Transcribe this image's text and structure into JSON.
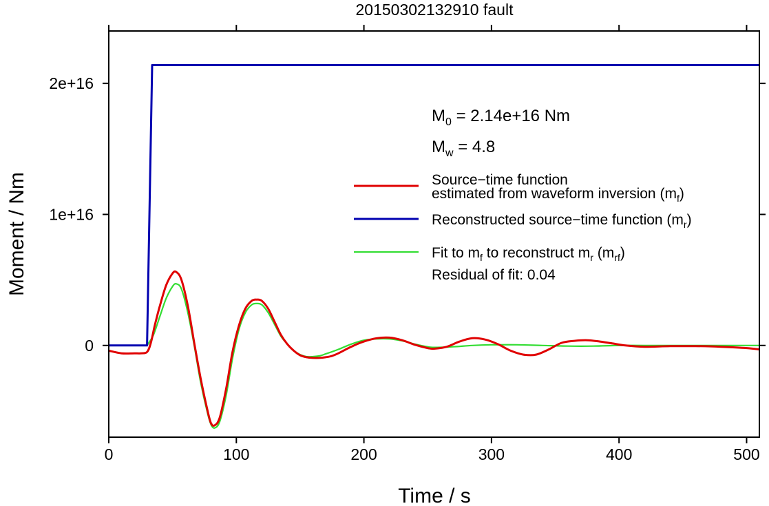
{
  "chart_data": {
    "type": "line",
    "title": "20150302132910 fault",
    "xlabel": "Time / s",
    "ylabel": "Moment / Nm",
    "xlim": [
      0,
      510
    ],
    "ylim": [
      -7000000000000000.0,
      2.4e+16
    ],
    "grid": false,
    "legend_position": "right",
    "x_ticks": [
      {
        "value": 0,
        "label": "0"
      },
      {
        "value": 100,
        "label": "100"
      },
      {
        "value": 200,
        "label": "200"
      },
      {
        "value": 300,
        "label": "300"
      },
      {
        "value": 400,
        "label": "400"
      },
      {
        "value": 500,
        "label": "500"
      }
    ],
    "y_ticks": [
      {
        "value": 0,
        "label": "0"
      },
      {
        "value": 1e+16,
        "label": "1e+16"
      },
      {
        "value": 2e+16,
        "label": "2e+16"
      }
    ],
    "annotations": {
      "m0": {
        "symbol": "M",
        "sub": "0",
        "text": " = 2.14e+16 Nm"
      },
      "mw": {
        "symbol": "M",
        "sub": "w",
        "text": " = 4.8"
      },
      "residual": "Residual of fit: 0.04"
    },
    "legend": {
      "stf_line1": "Source−time function",
      "stf_line2": "estimated from waveform inversion (m",
      "stf_line2_sub": "f",
      "stf_line2_end": ")",
      "rec_text": "Reconstructed source−time function (m",
      "rec_sub": "r",
      "rec_end": ")",
      "fit_a": "Fit to m",
      "fit_a_sub": "f",
      "fit_b": " to reconstruct m",
      "fit_b_sub": "r",
      "fit_c": " (m",
      "fit_c_sub": "rf",
      "fit_d": ")"
    },
    "series": [
      {
        "key": "mf",
        "color": "#e00000",
        "width": 3,
        "x": [
          0,
          10,
          20,
          25,
          30,
          33,
          36,
          40,
          45,
          50,
          53,
          57,
          62,
          67,
          72,
          77,
          80,
          83,
          87,
          92,
          97,
          102,
          107,
          112,
          116,
          120,
          125,
          130,
          135,
          140,
          145,
          150,
          155,
          160,
          165,
          170,
          175,
          180,
          190,
          200,
          210,
          220,
          230,
          240,
          250,
          255,
          265,
          275,
          285,
          295,
          305,
          315,
          325,
          335,
          345,
          355,
          365,
          375,
          385,
          395,
          405,
          420,
          440,
          460,
          480,
          500,
          510
        ],
        "y": [
          -400000000000000.0,
          -600000000000000.0,
          -600000000000000.0,
          -600000000000000.0,
          -500000000000000.0,
          200000000000000.0,
          1500000000000000.0,
          3000000000000000.0,
          4600000000000000.0,
          5500000000000000.0,
          5600000000000000.0,
          5000000000000000.0,
          3000000000000000.0,
          200000000000000.0,
          -2500000000000000.0,
          -4800000000000000.0,
          -5900000000000000.0,
          -6100000000000000.0,
          -5500000000000000.0,
          -3300000000000000.0,
          -500000000000000.0,
          1500000000000000.0,
          2800000000000000.0,
          3400000000000000.0,
          3500000000000000.0,
          3400000000000000.0,
          2800000000000000.0,
          1800000000000000.0,
          800000000000000.0,
          100000000000000.0,
          -400000000000000.0,
          -750000000000000.0,
          -900000000000000.0,
          -950000000000000.0,
          -950000000000000.0,
          -900000000000000.0,
          -800000000000000.0,
          -600000000000000.0,
          -100000000000000.0,
          300000000000000.0,
          550000000000000.0,
          600000000000000.0,
          400000000000000.0,
          50000000000000.0,
          -200000000000000.0,
          -250000000000000.0,
          -100000000000000.0,
          300000000000000.0,
          550000000000000.0,
          450000000000000.0,
          100000000000000.0,
          -400000000000000.0,
          -700000000000000.0,
          -700000000000000.0,
          -300000000000000.0,
          200000000000000.0,
          350000000000000.0,
          400000000000000.0,
          300000000000000.0,
          150000000000000.0,
          0.0,
          -100000000000000.0,
          -50000000000000.0,
          -50000000000000.0,
          -100000000000000.0,
          -200000000000000.0,
          -300000000000000.0
        ]
      },
      {
        "key": "mr",
        "color": "#0000b0",
        "width": 3,
        "x": [
          0,
          30,
          34,
          510
        ],
        "y": [
          0,
          0,
          2.14e+16,
          2.14e+16
        ]
      },
      {
        "key": "mrf",
        "color": "#33dd33",
        "width": 2.2,
        "x": [
          30,
          35,
          40,
          45,
          50,
          53,
          57,
          62,
          67,
          72,
          77,
          80,
          83,
          87,
          92,
          97,
          102,
          107,
          112,
          116,
          120,
          125,
          130,
          135,
          140,
          145,
          150,
          155,
          160,
          165,
          170,
          180,
          190,
          200,
          210,
          220,
          230,
          240,
          250,
          255,
          270,
          285,
          300,
          320,
          340,
          360,
          380,
          400,
          420,
          460,
          500,
          510
        ],
        "y": [
          0,
          800000000000000.0,
          2200000000000000.0,
          3600000000000000.0,
          4500000000000000.0,
          4700000000000000.0,
          4300000000000000.0,
          2500000000000000.0,
          0.0,
          -2800000000000000.0,
          -5000000000000000.0,
          -6000000000000000.0,
          -6300000000000000.0,
          -5800000000000000.0,
          -3800000000000000.0,
          -1000000000000000.0,
          1200000000000000.0,
          2500000000000000.0,
          3100000000000000.0,
          3200000000000000.0,
          3100000000000000.0,
          2500000000000000.0,
          1600000000000000.0,
          700000000000000.0,
          100000000000000.0,
          -400000000000000.0,
          -700000000000000.0,
          -850000000000000.0,
          -850000000000000.0,
          -800000000000000.0,
          -650000000000000.0,
          -300000000000000.0,
          100000000000000.0,
          400000000000000.0,
          500000000000000.0,
          500000000000000.0,
          350000000000000.0,
          100000000000000.0,
          -100000000000000.0,
          -150000000000000.0,
          -100000000000000.0,
          0.0,
          50000000000000.0,
          50000000000000.0,
          0.0,
          -50000000000000.0,
          -50000000000000.0,
          0.0,
          0.0,
          0.0,
          0.0,
          0.0
        ]
      }
    ]
  }
}
